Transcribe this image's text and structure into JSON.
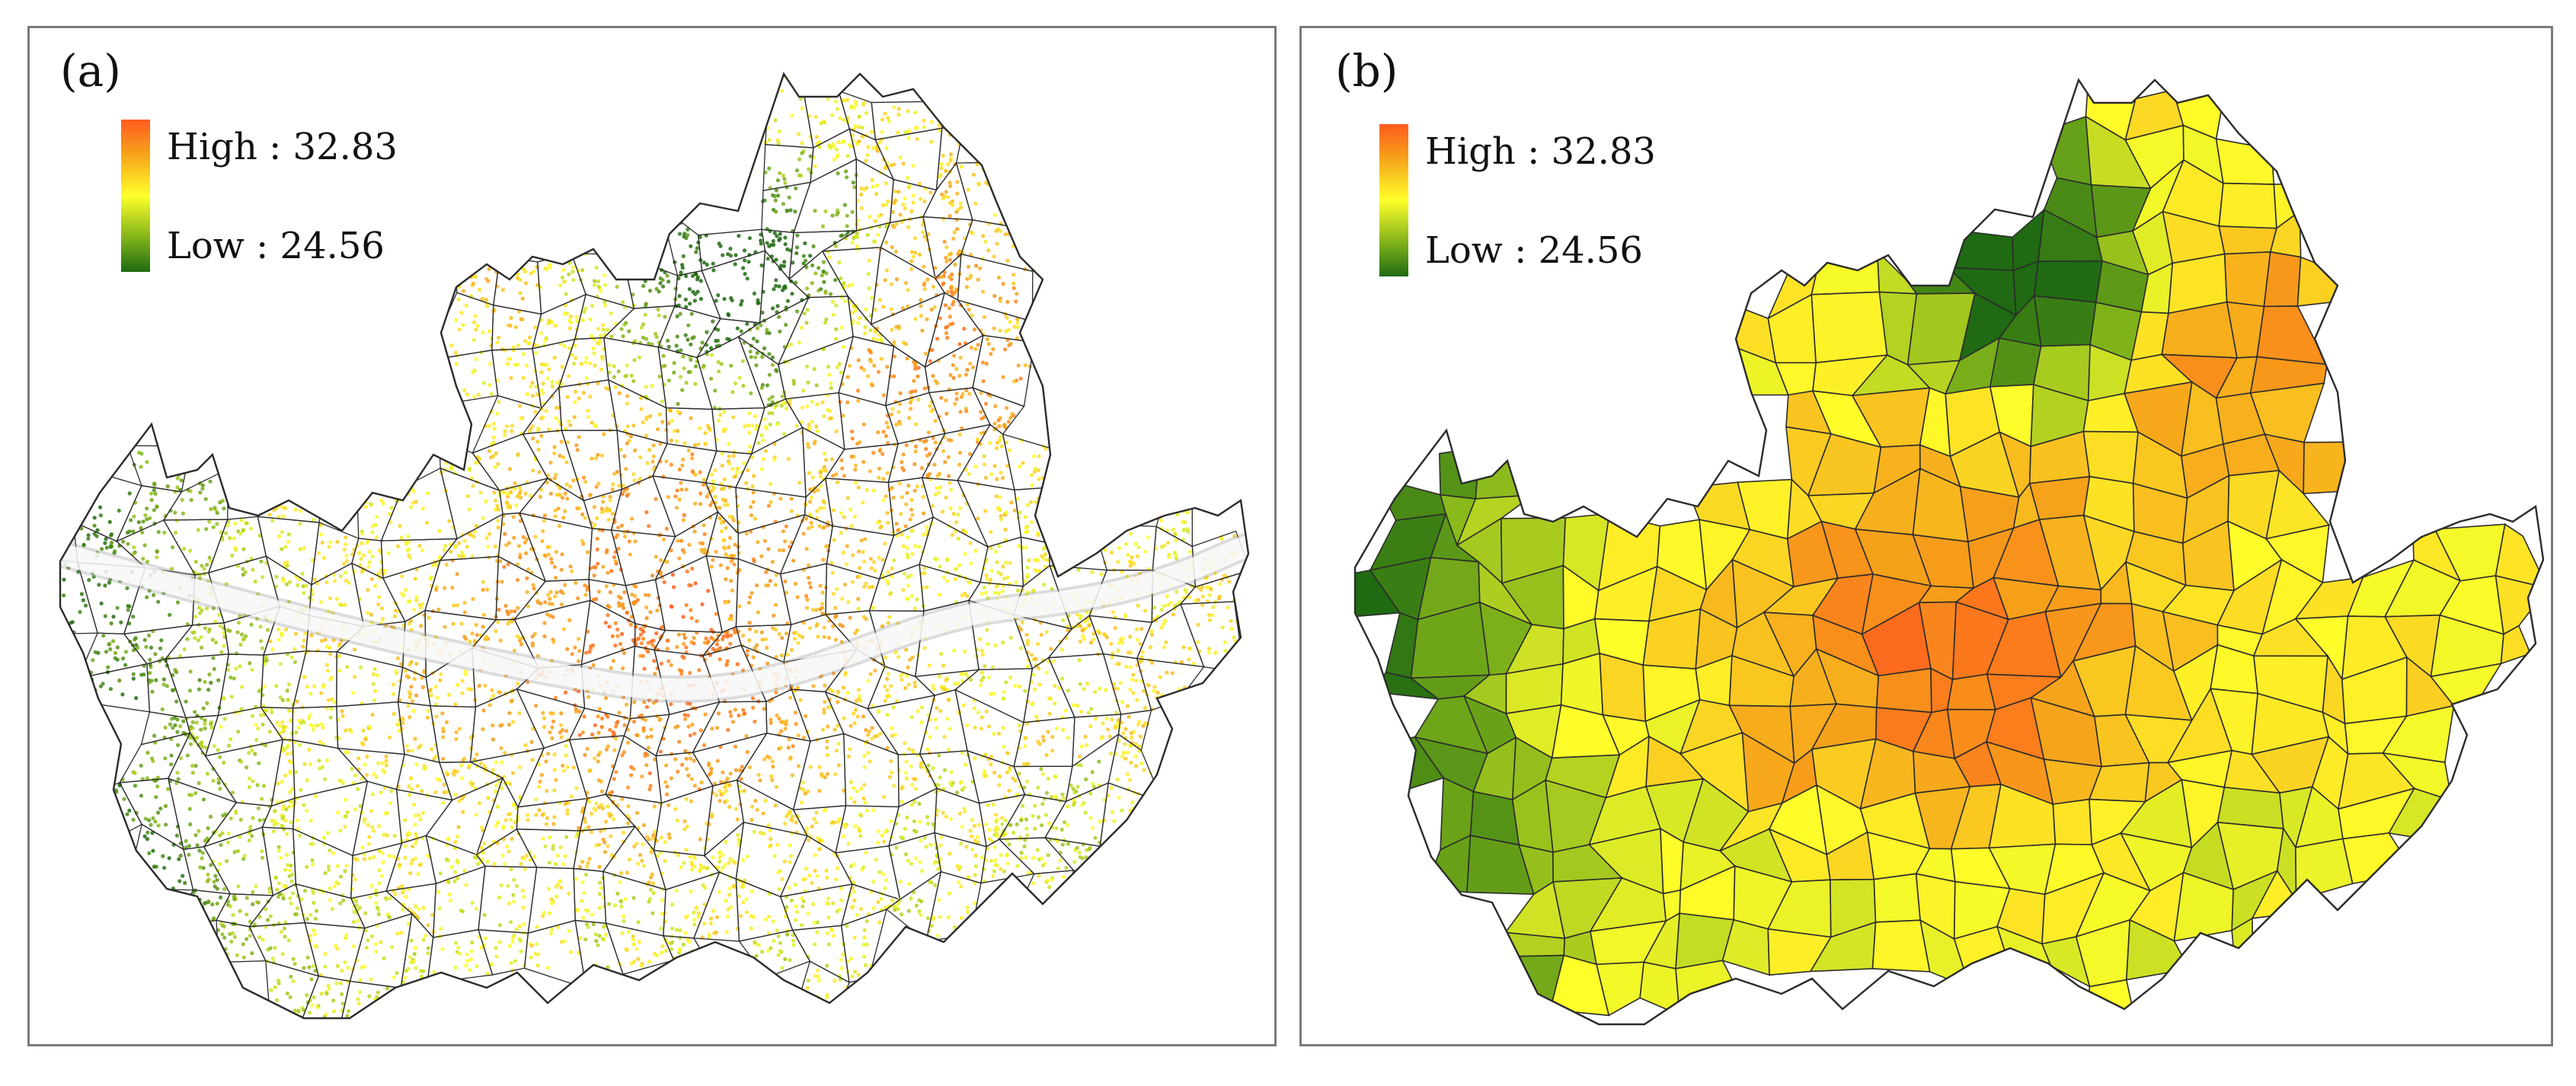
{
  "panels": [
    {
      "label": "(a)",
      "legend": {
        "high": "High : 32.83",
        "low": "Low : 24.56"
      }
    },
    {
      "label": "(b)",
      "legend": {
        "high": "High : 32.83",
        "low": "Low : 24.56"
      }
    }
  ],
  "colors": {
    "high": "#ff5a1e",
    "mid_high": "#f6a11a",
    "mid": "#ffff2a",
    "mid_low": "#7fb21a",
    "low": "#1f6a12",
    "boundary": "#2b2b2b",
    "river": "#9a9a9a",
    "frame": "#7a7a7a"
  }
}
